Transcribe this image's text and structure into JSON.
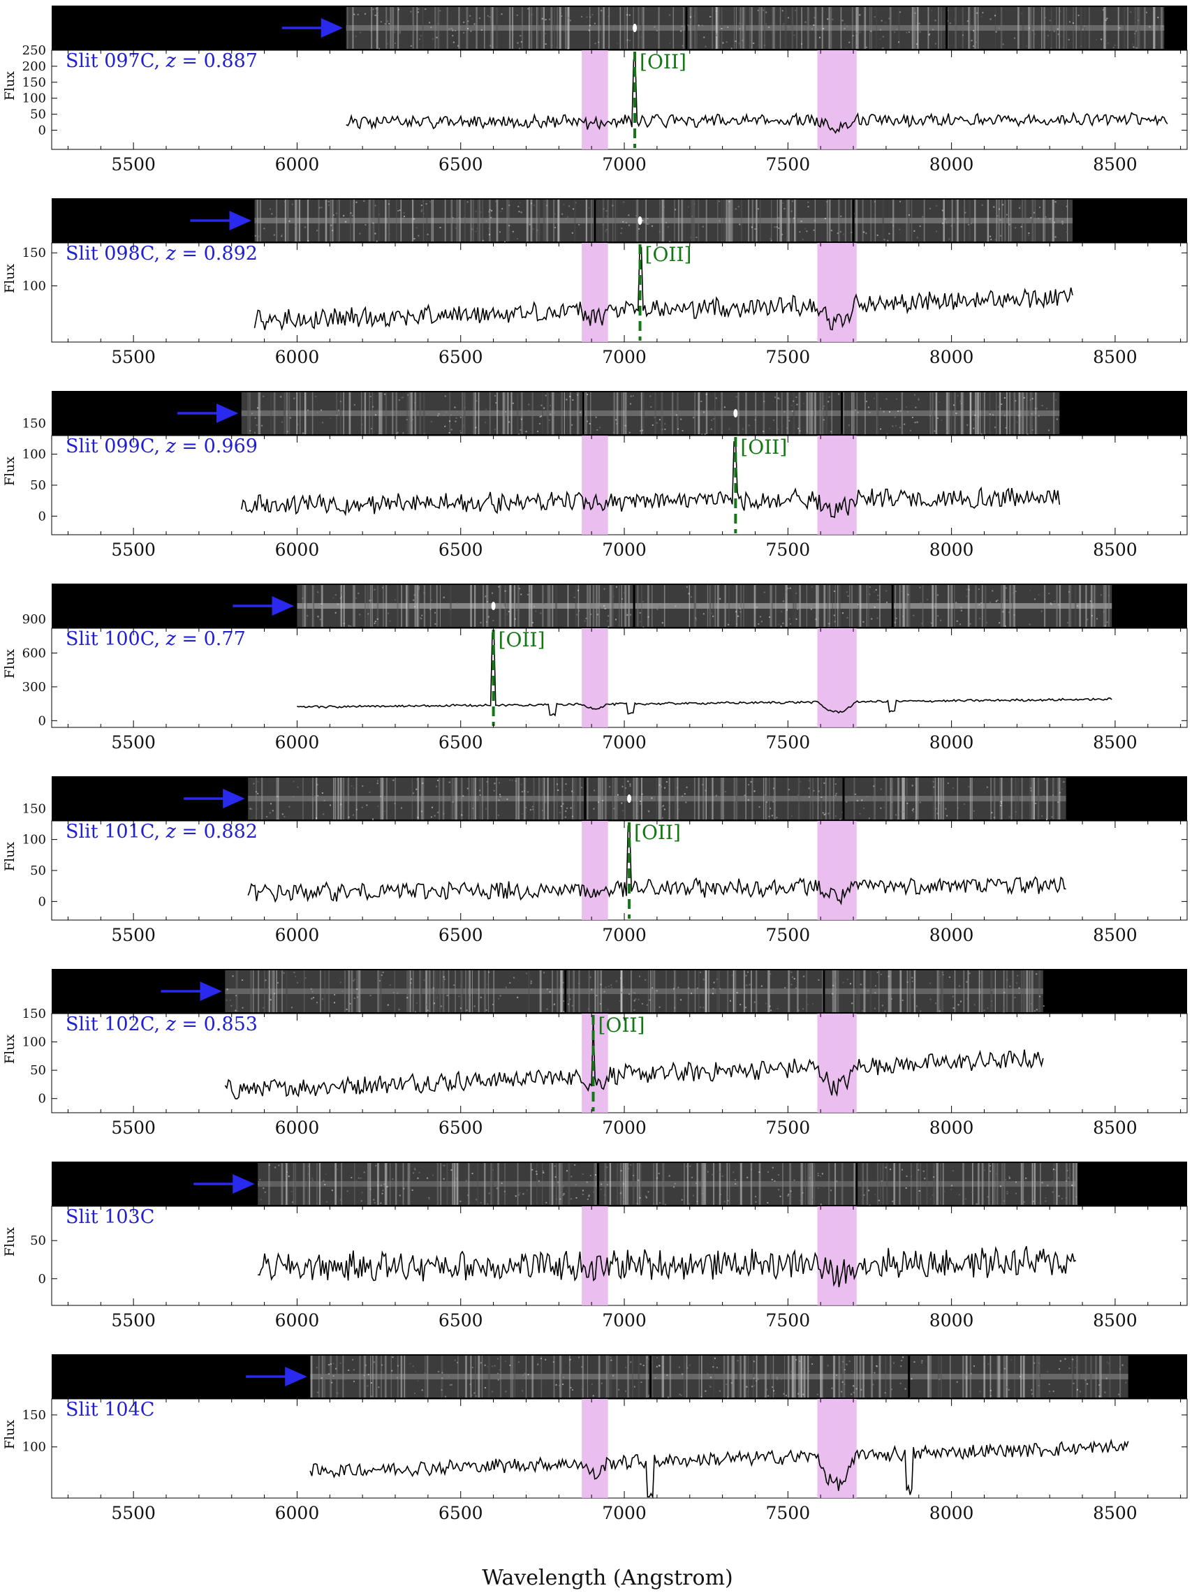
{
  "figure": {
    "xlabel": "Wavelength (Angstrom)",
    "ylabel": "Flux"
  },
  "chart_data": {
    "type": "line",
    "xlabel": "Wavelength (Angstrom)",
    "ylabel": "Flux",
    "xlim": [
      5250,
      8720
    ],
    "xticks": [
      5500,
      6000,
      6500,
      7000,
      7500,
      8000,
      8500
    ],
    "telluric_bands": [
      [
        6870,
        6950
      ],
      [
        7590,
        7710
      ]
    ],
    "colors": {
      "spectrum": "#000000",
      "label": "#2020d0",
      "arrow": "#2a2aee",
      "line_marker": "#137813",
      "band": "#e6b3eb"
    },
    "panels": [
      {
        "label": "Slit 097C",
        "z": "0.887",
        "line_name": "[OII]",
        "line_wavelength": 7032,
        "ylim": [
          -60,
          250
        ],
        "yticks": [
          0,
          50,
          100,
          150,
          200,
          250
        ],
        "wave_range": [
          6150,
          8660
        ],
        "continuum": [
          25,
          35
        ],
        "noise": 17,
        "peak": 220,
        "seed": 11,
        "image_start": 6150,
        "image_end": 8650,
        "image_brightness": 0.45,
        "gaps": [
          7190,
          7985
        ],
        "bright_spots": [
          7032
        ],
        "dips": [],
        "band_dip": 20
      },
      {
        "label": "Slit 098C",
        "z": "0.892",
        "line_name": "[OII]",
        "line_wavelength": 7048,
        "ylim": [
          15,
          165
        ],
        "yticks": [
          100,
          150
        ],
        "wave_range": [
          5870,
          8370
        ],
        "continuum": [
          48,
          82
        ],
        "noise": 13,
        "peak": 158,
        "seed": 22,
        "image_start": 5870,
        "image_end": 8370,
        "image_brightness": 0.5,
        "gaps": [
          6910,
          7700
        ],
        "bright_spots": [
          7048
        ],
        "dips": [],
        "band_dip": 28
      },
      {
        "label": "Slit 099C",
        "z": "0.969",
        "line_name": "[OII]",
        "line_wavelength": 7340,
        "ylim": [
          -30,
          130
        ],
        "yticks": [
          0,
          50,
          100,
          150
        ],
        "wave_range": [
          5830,
          8330
        ],
        "continuum": [
          18,
          30
        ],
        "noise": 14,
        "peak": 120,
        "seed": 33,
        "image_start": 5830,
        "image_end": 8330,
        "image_brightness": 0.45,
        "gaps": [
          6875,
          7665
        ],
        "bright_spots": [
          7340
        ],
        "dips": [],
        "band_dip": 15
      },
      {
        "label": "Slit 100C",
        "z": "0.77",
        "line_name": "[OII]",
        "line_wavelength": 6600,
        "ylim": [
          -60,
          820
        ],
        "yticks": [
          0,
          300,
          600,
          900
        ],
        "wave_range": [
          6000,
          8490
        ],
        "continuum": [
          120,
          190
        ],
        "noise": 9,
        "peak": 780,
        "seed": 44,
        "image_start": 6000,
        "image_end": 8490,
        "image_brightness": 0.75,
        "gaps": [
          7030,
          7820
        ],
        "bright_spots": [
          6600
        ],
        "dips": [
          6780,
          7020,
          7820
        ],
        "band_dip": 90
      },
      {
        "label": "Slit 101C",
        "z": "0.882",
        "line_name": "[OII]",
        "line_wavelength": 7015,
        "ylim": [
          -30,
          130
        ],
        "yticks": [
          0,
          50,
          100,
          150
        ],
        "wave_range": [
          5850,
          8350
        ],
        "continuum": [
          14,
          28
        ],
        "noise": 13,
        "peak": 122,
        "seed": 55,
        "image_start": 5850,
        "image_end": 8350,
        "image_brightness": 0.42,
        "gaps": [
          6880,
          7670
        ],
        "bright_spots": [
          7015
        ],
        "dips": [],
        "band_dip": 15
      },
      {
        "label": "Slit 102C",
        "z": "0.853",
        "line_name": "[OII]",
        "line_wavelength": 6905,
        "ylim": [
          -25,
          150
        ],
        "yticks": [
          0,
          50,
          100,
          150
        ],
        "wave_range": [
          5780,
          8280
        ],
        "continuum": [
          15,
          70
        ],
        "noise": 15,
        "peak": 140,
        "seed": 66,
        "image_start": 5780,
        "image_end": 8280,
        "image_brightness": 0.4,
        "gaps": [
          6820,
          7610
        ],
        "bright_spots": [],
        "dips": [],
        "band_dip": 35
      },
      {
        "label": "Slit 103C",
        "z": "",
        "line_name": "",
        "line_wavelength": null,
        "ylim": [
          -35,
          95
        ],
        "yticks": [
          0,
          50
        ],
        "wave_range": [
          5880,
          8380
        ],
        "continuum": [
          15,
          22
        ],
        "noise": 17,
        "peak": 0,
        "seed": 77,
        "image_start": 5880,
        "image_end": 8380,
        "image_brightness": 0.35,
        "gaps": [
          6920,
          7710
        ],
        "bright_spots": [],
        "dips": [],
        "band_dip": 15
      },
      {
        "label": "Slit 104C",
        "z": "",
        "line_name": "",
        "line_wavelength": null,
        "ylim": [
          20,
          175
        ],
        "yticks": [
          100,
          150
        ],
        "wave_range": [
          6040,
          8540
        ],
        "continuum": [
          62,
          100
        ],
        "noise": 10,
        "peak": 0,
        "seed": 88,
        "image_start": 6040,
        "image_end": 8540,
        "image_brightness": 0.45,
        "gaps": [
          7080,
          7870
        ],
        "bright_spots": [],
        "dips": [
          7080,
          7870
        ],
        "band_dip": 45
      }
    ]
  }
}
